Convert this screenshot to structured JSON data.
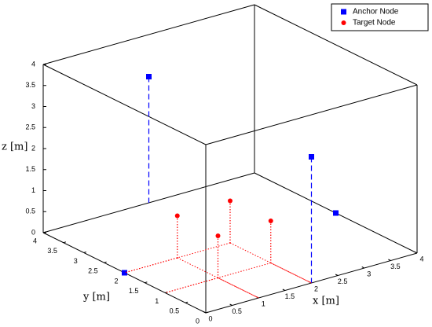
{
  "chart_data": {
    "type": "scatter3d",
    "xlabel": "x [m]",
    "ylabel": "y [m]",
    "zlabel": "z [m]",
    "xlim": [
      0,
      4
    ],
    "ylim": [
      0,
      4
    ],
    "zlim": [
      0,
      4
    ],
    "xticks": [
      0,
      0.5,
      1,
      1.5,
      2,
      2.5,
      3,
      3.5,
      4
    ],
    "yticks": [
      0,
      0.5,
      1,
      1.5,
      2,
      2.5,
      3,
      3.5,
      4
    ],
    "zticks": [
      0,
      0.5,
      1,
      1.5,
      2,
      2.5,
      3,
      3.5,
      4
    ],
    "legend": "top-right",
    "series": [
      {
        "name": "Anchor Node",
        "color": "#0000ff",
        "marker": "square",
        "stem": "dashed",
        "x": [
          2,
          2,
          4,
          0
        ],
        "y": [
          4,
          0,
          2,
          2
        ],
        "z": [
          3,
          3,
          0,
          0
        ]
      },
      {
        "name": "Target Node",
        "color": "#ff0000",
        "marker": "circle",
        "stem": "dotted",
        "x": [
          1,
          2,
          1,
          2
        ],
        "y": [
          2,
          2,
          1,
          1
        ],
        "z": [
          1,
          1,
          1,
          1
        ]
      }
    ]
  }
}
